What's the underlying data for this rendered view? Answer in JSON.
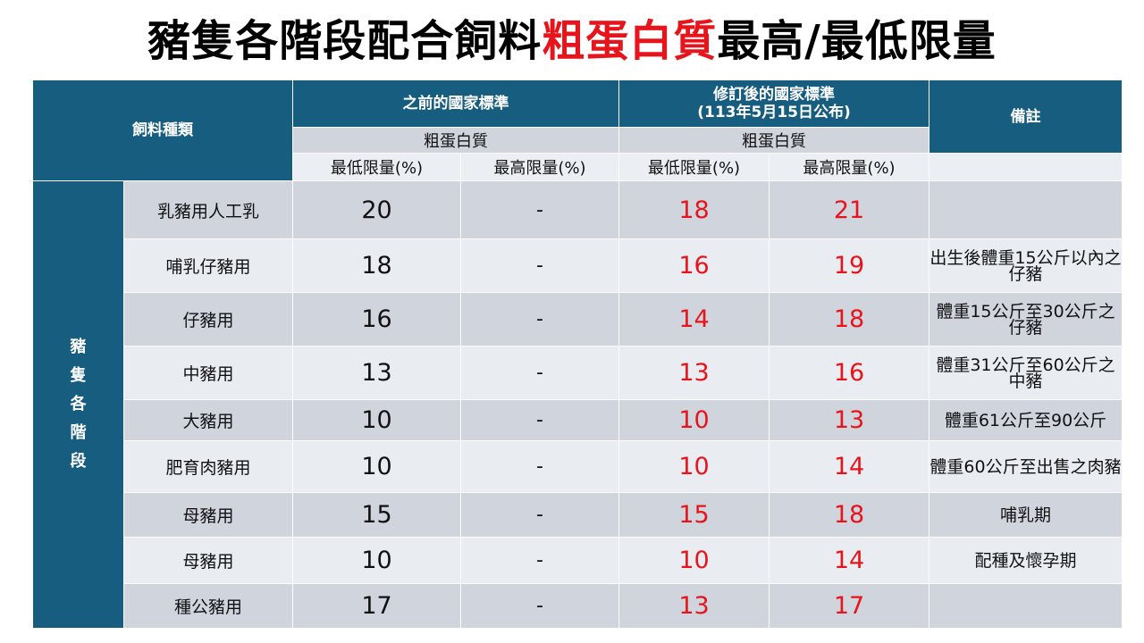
{
  "title": {
    "part1": "豬隻各階段配合飼料",
    "highlight": "粗蛋白質",
    "part2": "最高/最低限量"
  },
  "headers": {
    "feed_type": "飼料種類",
    "prev_standard": "之前的國家標準",
    "new_standard_line1": "修訂後的國家標準",
    "new_standard_line2": "(113年5月15日公布)",
    "remarks": "備註",
    "crude_protein": "粗蛋白質",
    "min_limit": "最低限量(%)",
    "max_limit": "最高限量(%)"
  },
  "stage_label": [
    "豬",
    "隻",
    "各",
    "階",
    "段"
  ],
  "rows": [
    {
      "name": "乳豬用人工乳",
      "prev_min": "20",
      "prev_max": "-",
      "new_min": "18",
      "new_max": "21",
      "note": ""
    },
    {
      "name": "哺乳仔豬用",
      "prev_min": "18",
      "prev_max": "-",
      "new_min": "16",
      "new_max": "19",
      "note": "出生後體重15公斤以內之仔豬"
    },
    {
      "name": "仔豬用",
      "prev_min": "16",
      "prev_max": "-",
      "new_min": "14",
      "new_max": "18",
      "note": "體重15公斤至30公斤之仔豬"
    },
    {
      "name": "中豬用",
      "prev_min": "13",
      "prev_max": "-",
      "new_min": "13",
      "new_max": "16",
      "note": "體重31公斤至60公斤之中豬"
    },
    {
      "name": "大豬用",
      "prev_min": "10",
      "prev_max": "-",
      "new_min": "10",
      "new_max": "13",
      "note": "體重61公斤至90公斤"
    },
    {
      "name": "肥育肉豬用",
      "prev_min": "10",
      "prev_max": "-",
      "new_min": "10",
      "new_max": "14",
      "note": "體重60公斤至出售之肉豬"
    },
    {
      "name": "母豬用",
      "prev_min": "15",
      "prev_max": "-",
      "new_min": "15",
      "new_max": "18",
      "note": "哺乳期"
    },
    {
      "name": "母豬用",
      "prev_min": "10",
      "prev_max": "-",
      "new_min": "10",
      "new_max": "14",
      "note": "配種及懷孕期"
    },
    {
      "name": "種公豬用",
      "prev_min": "17",
      "prev_max": "-",
      "new_min": "13",
      "new_max": "17",
      "note": ""
    }
  ],
  "colors": {
    "header": "#175d80",
    "row_dark": "#cfd4dd",
    "row_light": "#e9ecf1",
    "highlight_red": "#e8141b"
  }
}
